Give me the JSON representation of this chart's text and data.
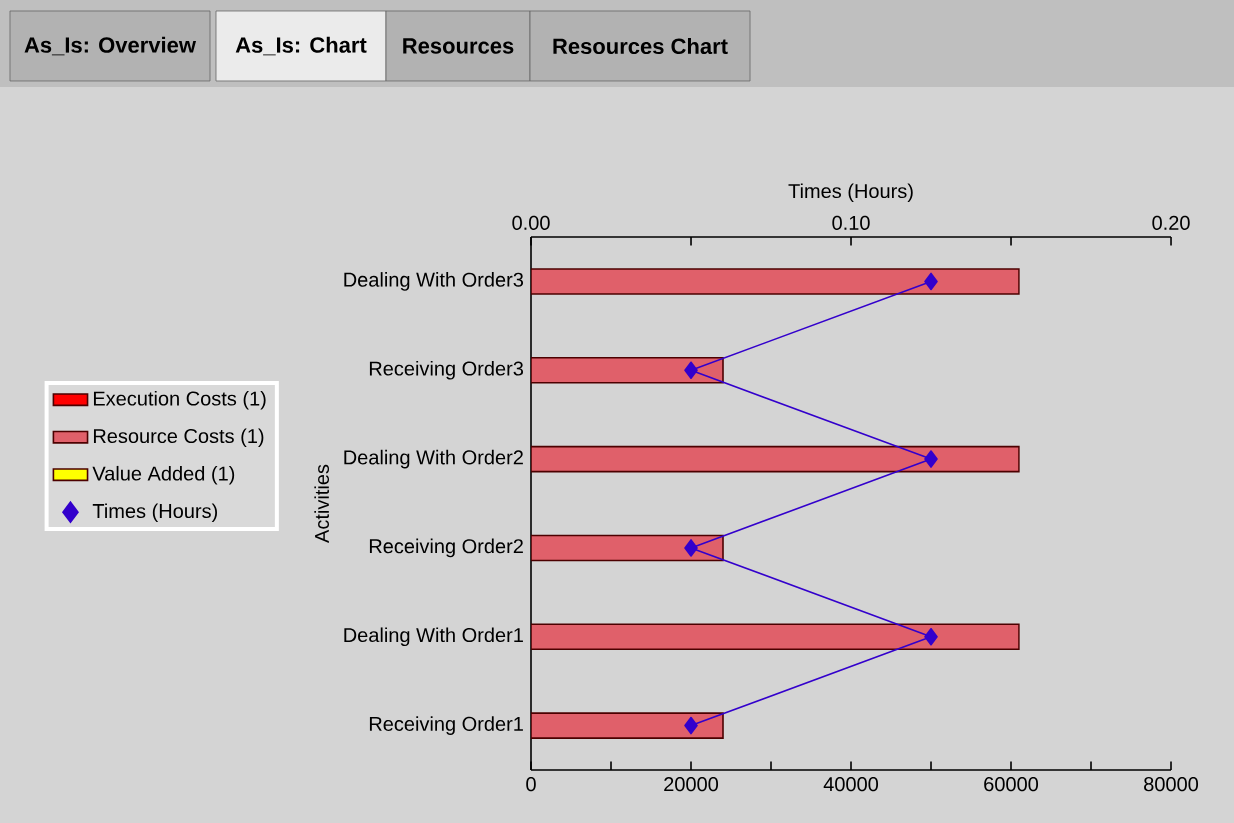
{
  "chart_data": {
    "type": "bar",
    "orientation": "horizontal",
    "x2label": "Times (Hours)",
    "ylabel": "Activities",
    "categories": [
      "Dealing With Order3",
      "Receiving Order3",
      "Dealing With Order2",
      "Receiving Order2",
      "Dealing With Order1",
      "Receiving Order1"
    ],
    "series": [
      {
        "name": "Execution Costs (1)",
        "color": "#ff0000",
        "values": [
          null,
          null,
          null,
          null,
          null,
          null
        ]
      },
      {
        "name": "Resource Costs (1)",
        "color": "#e0606a",
        "values": [
          61000,
          24000,
          61000,
          24000,
          61000,
          24000
        ]
      },
      {
        "name": "Value Added (1)",
        "color": "#ffff00",
        "values": [
          null,
          null,
          null,
          null,
          null,
          null
        ]
      },
      {
        "name": "Times (Hours)",
        "type": "line",
        "axis": "x2",
        "color": "#3300cc",
        "marker": "diamond",
        "values": [
          0.125,
          0.05,
          0.125,
          0.05,
          0.125,
          0.05
        ]
      }
    ],
    "xlim": [
      0,
      80000
    ],
    "xticks": [
      0,
      {
        "value": 10000,
        "label": null
      },
      20000,
      {
        "value": 30000,
        "label": null
      },
      40000,
      {
        "value": 50000,
        "label": null
      },
      60000,
      {
        "value": 70000,
        "label": null
      },
      80000
    ],
    "x2lim": [
      0,
      0.2
    ],
    "x2ticks": [
      {
        "value": 0,
        "label": "0.00"
      },
      {
        "value": 0.05,
        "label": null
      },
      {
        "value": 0.1,
        "label": "0.10"
      },
      {
        "value": 0.15,
        "label": null
      },
      {
        "value": 0.2,
        "label": "0.20"
      }
    ],
    "legend": "left",
    "annotations": [
      "As_Is: Overview",
      "As_Is: Chart",
      "Resources",
      "Resources Chart"
    ]
  }
}
